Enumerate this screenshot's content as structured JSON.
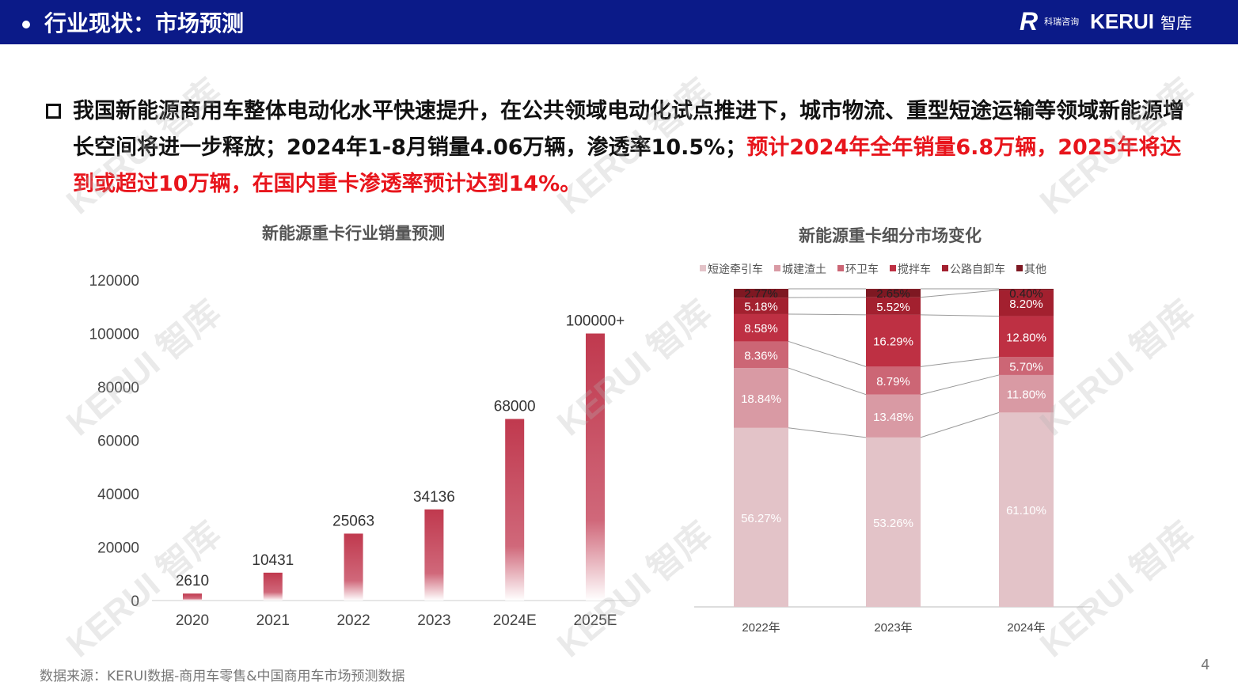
{
  "header": {
    "title": "行业现状：市场预测",
    "logo_cn": "科瑞咨询",
    "logo_en": "KERUI",
    "logo_zh": "智库"
  },
  "bullet": {
    "text_black": "我国新能源商用车整体电动化水平快速提升，在公共领域电动化试点推进下，城市物流、重型短途运输等领域新能源增长空间将进一步释放；2024年1-8月销量4.06万辆，渗透率10.5%；",
    "text_red": "预计2024年全年销量6.8万辆，2025年将达到或超过10万辆，在国内重卡渗透率预计达到14%。"
  },
  "chart_data": [
    {
      "type": "bar",
      "title": "新能源重卡行业销量预测",
      "categories": [
        "2020",
        "2021",
        "2022",
        "2023",
        "2024E",
        "2025E"
      ],
      "values": [
        2610,
        10431,
        25063,
        34136,
        68000,
        100000
      ],
      "data_labels": [
        "2610",
        "10431",
        "25063",
        "34136",
        "68000",
        "100000+"
      ],
      "yticks": [
        "0",
        "20000",
        "40000",
        "60000",
        "80000",
        "100000",
        "120000"
      ],
      "ylim": [
        0,
        120000
      ],
      "color": "#c0394e"
    },
    {
      "type": "bar",
      "stacked": true,
      "title": "新能源重卡细分市场变化",
      "categories": [
        "2022年",
        "2023年",
        "2024年"
      ],
      "legend_position": "top",
      "series": [
        {
          "name": "短途牵引车",
          "values": [
            56.27,
            53.26,
            61.1
          ],
          "labels": [
            "56.27%",
            "53.26%",
            "61.10%"
          ],
          "color": "#e3c3c8"
        },
        {
          "name": "城建渣土",
          "values": [
            18.84,
            13.48,
            11.8
          ],
          "labels": [
            "18.84%",
            "13.48%",
            "11.80%"
          ],
          "color": "#d99aa4"
        },
        {
          "name": "环卫车",
          "values": [
            8.36,
            8.79,
            5.7
          ],
          "labels": [
            "8.36%",
            "8.79%",
            "5.70%"
          ],
          "color": "#cc6675"
        },
        {
          "name": "搅拌车",
          "values": [
            8.58,
            16.29,
            12.8
          ],
          "labels": [
            "8.58%",
            "16.29%",
            "12.80%"
          ],
          "color": "#be3043"
        },
        {
          "name": "公路自卸车",
          "values": [
            5.18,
            5.52,
            8.2
          ],
          "labels": [
            "5.18%",
            "5.52%",
            "8.20%"
          ],
          "color": "#a3202f"
        },
        {
          "name": "其他",
          "values": [
            2.77,
            2.65,
            0.4
          ],
          "labels": [
            "2.77%",
            "2.65%",
            "0.40%"
          ],
          "color": "#7e1822"
        }
      ]
    }
  ],
  "watermark": "KERUI 智库",
  "footer": {
    "source": "数据来源：KERUI数据-商用车零售&中国商用车市场预测数据",
    "page": "4"
  }
}
